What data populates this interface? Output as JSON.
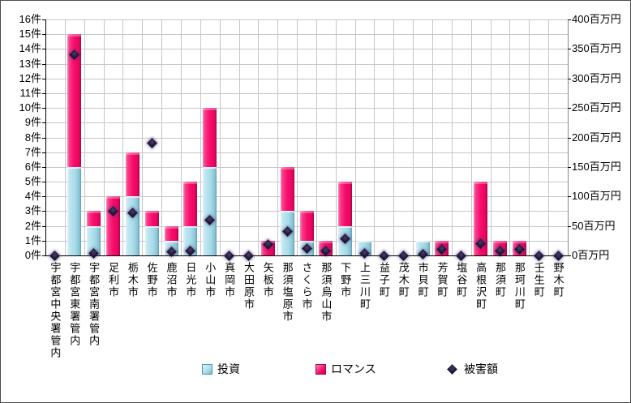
{
  "chart_data": {
    "type": "bar",
    "stacked": true,
    "grid": true,
    "title": "",
    "categories": [
      "宇都宮中央署管内",
      "宇都宮東署管内",
      "宇都宮南署管内",
      "足利市",
      "栃木市",
      "佐野市",
      "鹿沼市",
      "日光市",
      "小山市",
      "真岡市",
      "大田原市",
      "矢板市",
      "那須塩原市",
      "さくら市",
      "那須烏山市",
      "下野市",
      "上三川町",
      "益子町",
      "茂木町",
      "市貝町",
      "芳賀町",
      "塩谷町",
      "高根沢町",
      "那須町",
      "那珂川町",
      "壬生町",
      "野木町"
    ],
    "series": [
      {
        "name": "投資",
        "type": "bar",
        "axis": "left",
        "color": "#a8dcea",
        "values": [
          0,
          6,
          2,
          0,
          4,
          2,
          1,
          2,
          6,
          0,
          0,
          0,
          3,
          1,
          0,
          2,
          1,
          0,
          0,
          1,
          0,
          0,
          0,
          0,
          0,
          0,
          0
        ]
      },
      {
        "name": "ロマンス",
        "type": "bar",
        "axis": "left",
        "color": "#f60d6a",
        "values": [
          0,
          9,
          1,
          4,
          3,
          1,
          1,
          3,
          4,
          0,
          0,
          1,
          3,
          2,
          1,
          3,
          0,
          0,
          0,
          0,
          1,
          0,
          5,
          1,
          1,
          0,
          0
        ]
      },
      {
        "name": "被害額",
        "type": "scatter",
        "marker": "diamond",
        "axis": "right",
        "color": "#23173d",
        "values": [
          0,
          340,
          3,
          75,
          72,
          190,
          6,
          8,
          60,
          0,
          0,
          18,
          40,
          12,
          8,
          28,
          4,
          0,
          0,
          2,
          10,
          0,
          20,
          7,
          10,
          0,
          0
        ]
      }
    ],
    "left_axis": {
      "unit": "件",
      "min": 0,
      "max": 16,
      "step": 1,
      "labels": [
        "0件",
        "1件",
        "2件",
        "3件",
        "4件",
        "5件",
        "6件",
        "7件",
        "8件",
        "9件",
        "10件",
        "11件",
        "12件",
        "13件",
        "14件",
        "15件",
        "16件"
      ]
    },
    "right_axis": {
      "unit": "百万円",
      "min": 0,
      "max": 400,
      "step": 50,
      "labels": [
        "0百万円",
        "50百万円",
        "100百万円",
        "150百万円",
        "200百万円",
        "250百万円",
        "300百万円",
        "350百万円",
        "400百万円"
      ]
    },
    "legend": {
      "position": "bottom",
      "items": [
        "投資",
        "ロマンス",
        "被害額"
      ]
    }
  }
}
